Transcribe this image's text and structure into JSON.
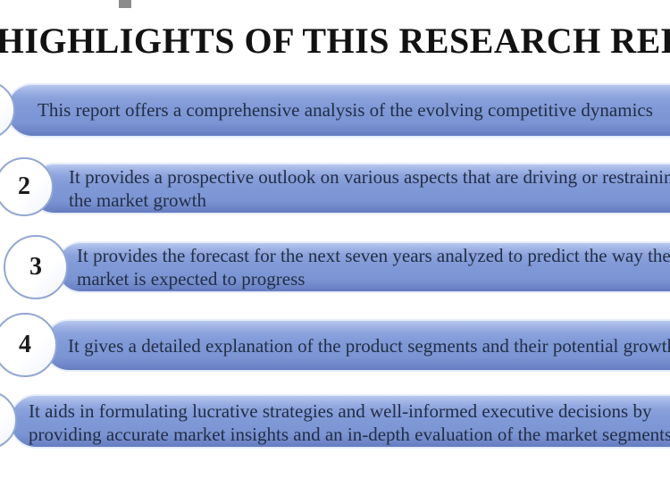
{
  "title": {
    "text": "KEY HIGHLIGHTS OF THIS RESEARCH REPORT"
  },
  "colors": {
    "bar_body": "#7d96d5",
    "bar_top_highlight": "#b9c9ef",
    "bar_bottom_shade": "#647cc0",
    "bar_outer_edge": "#e7edf9",
    "circle_border": "#93a7d2",
    "circle_fill": "#ffffff",
    "body_text": "#222e45",
    "title_text": "#121212",
    "number_text": "#1a1a1a",
    "background": "#ffffff"
  },
  "highlights": [
    {
      "number": "",
      "lines": [
        "This report offers a comprehensive analysis of the evolving competitive dynamics"
      ]
    },
    {
      "number": "2",
      "lines": [
        "It provides a prospective outlook on various aspects that are driving or restraining",
        "the market growth"
      ]
    },
    {
      "number": "3",
      "lines": [
        "It provides the forecast for the next seven years analyzed to predict the way the",
        "market is expected to progress"
      ]
    },
    {
      "number": "4",
      "lines": [
        "It gives a detailed explanation of the product segments and their potential growth"
      ]
    },
    {
      "number": "",
      "lines": [
        "It aids in formulating lucrative strategies and well-informed executive decisions by",
        "providing accurate market insights and an in-depth evaluation of the market segments"
      ]
    }
  ]
}
